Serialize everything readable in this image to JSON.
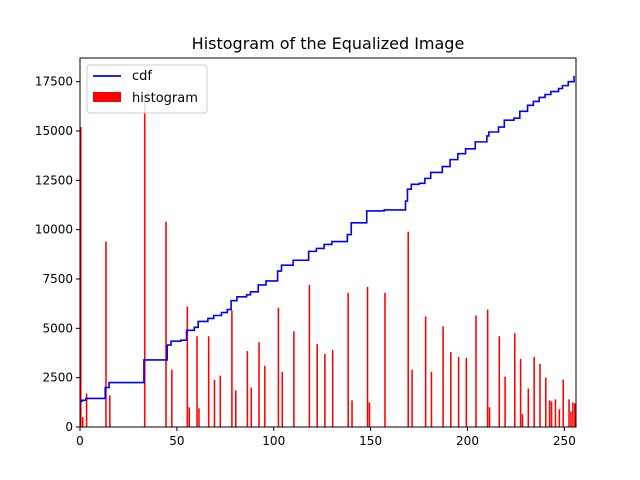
{
  "chart_data": {
    "type": "bar",
    "title": "Histogram of the Equalized Image",
    "xlabel": "",
    "ylabel": "",
    "xlim": [
      0,
      256
    ],
    "ylim": [
      0,
      18700
    ],
    "xticks": [
      0,
      50,
      100,
      150,
      200,
      250
    ],
    "yticks": [
      0,
      2500,
      5000,
      7500,
      10000,
      12500,
      15000,
      17500
    ],
    "grid": false,
    "legend": {
      "placement": "top-left",
      "entries": [
        "cdf",
        "histogram"
      ]
    },
    "colors": {
      "cdf": "#0000ff",
      "histogram": "#ff0000",
      "axes": "#000000"
    },
    "series": [
      {
        "name": "histogram",
        "type": "bar",
        "x": [
          0,
          1,
          3,
          13,
          15,
          33,
          44,
          47,
          55,
          56,
          60,
          61,
          66,
          69,
          72,
          78,
          80,
          86,
          88,
          92,
          95,
          102,
          104,
          110,
          118,
          122,
          126,
          130,
          138,
          140,
          148,
          149,
          157,
          169,
          171,
          178,
          181,
          187,
          191,
          195,
          199,
          204,
          210,
          211,
          216,
          219,
          224,
          227,
          228,
          231,
          234,
          237,
          240,
          242,
          243,
          245,
          247,
          249,
          252,
          253,
          254,
          255
        ],
        "values": [
          15200,
          500,
          1700,
          9400,
          1600,
          16500,
          10400,
          2900,
          6100,
          1000,
          4600,
          950,
          4600,
          2400,
          2600,
          5900,
          1850,
          3850,
          2000,
          4300,
          3100,
          6050,
          2800,
          4850,
          7200,
          4200,
          3700,
          3900,
          6800,
          1350,
          7100,
          1250,
          6800,
          9900,
          2900,
          5600,
          2800,
          5100,
          3800,
          3550,
          3500,
          5650,
          5950,
          1000,
          4600,
          2550,
          4750,
          3450,
          650,
          1950,
          3550,
          3200,
          2500,
          1350,
          1300,
          1400,
          900,
          2400,
          1400,
          800,
          1250,
          1200
        ]
      },
      {
        "name": "cdf",
        "type": "step-line",
        "x": [
          0,
          1,
          3,
          6,
          13,
          15,
          30,
          33,
          44,
          45,
          47,
          52,
          55,
          59,
          61,
          66,
          69,
          73,
          76,
          78,
          81,
          86,
          88,
          92,
          96,
          102,
          104,
          110,
          118,
          122,
          126,
          130,
          138,
          140,
          148,
          157,
          168,
          169,
          171,
          175,
          178,
          181,
          187,
          191,
          195,
          199,
          204,
          210,
          211,
          216,
          219,
          224,
          227,
          231,
          234,
          237,
          240,
          243,
          247,
          249,
          252,
          255
        ],
        "values": [
          1300,
          1350,
          1450,
          1450,
          2000,
          2250,
          2250,
          3400,
          3400,
          4150,
          4350,
          4400,
          4900,
          5050,
          5350,
          5500,
          5650,
          5800,
          5950,
          6400,
          6600,
          6700,
          6850,
          7200,
          7400,
          7900,
          8200,
          8450,
          8900,
          9050,
          9250,
          9400,
          9750,
          10350,
          10950,
          11000,
          11450,
          12050,
          12300,
          12350,
          12600,
          12900,
          13200,
          13550,
          13850,
          14100,
          14450,
          14750,
          14950,
          15200,
          15550,
          15650,
          16000,
          16300,
          16500,
          16700,
          16850,
          17000,
          17150,
          17300,
          17500,
          17800
        ]
      }
    ]
  }
}
